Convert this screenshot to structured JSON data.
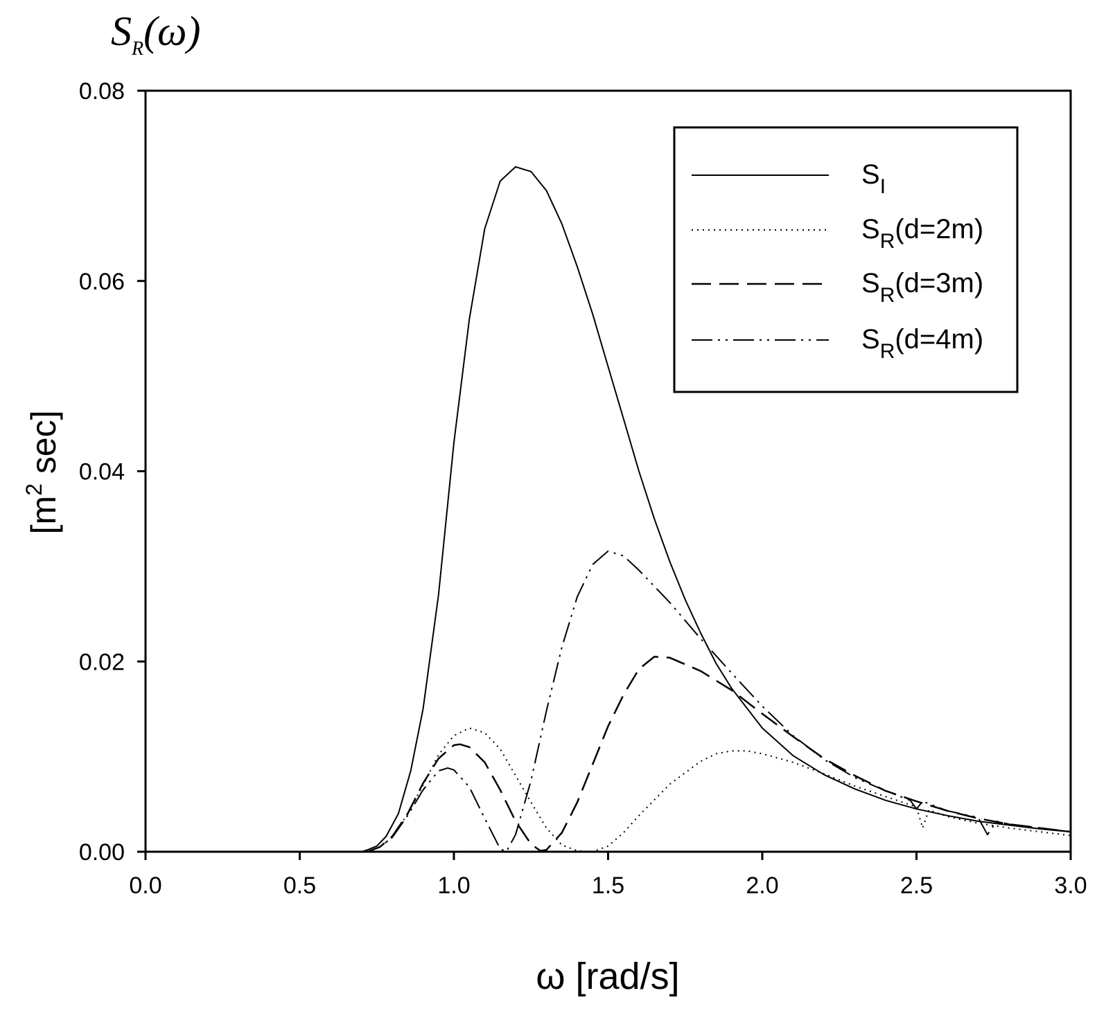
{
  "chart_data": {
    "type": "line",
    "title": "S",
    "title_subscript": "R",
    "title_suffix": "(ω)",
    "xlabel": "ω [rad/s]",
    "ylabel": "[m² sec]",
    "ylabel_parts": {
      "pre": "[m",
      "sup": "2",
      "post": " sec]"
    },
    "xlim": [
      0,
      3
    ],
    "ylim": [
      0,
      0.08
    ],
    "x_ticks": [
      "0.0",
      "0.5",
      "1.0",
      "1.5",
      "2.0",
      "2.5",
      "3.0"
    ],
    "y_ticks": [
      "0.00",
      "0.02",
      "0.04",
      "0.06",
      "0.08"
    ],
    "legend_position": "top-right",
    "series": [
      {
        "name": "SI",
        "label_main": "S",
        "label_sub": "I",
        "label_suffix": "",
        "style": "solid",
        "points": [
          [
            0.0,
            0
          ],
          [
            0.7,
            0
          ],
          [
            0.72,
            0.0002
          ],
          [
            0.75,
            0.0006
          ],
          [
            0.78,
            0.0016
          ],
          [
            0.82,
            0.004
          ],
          [
            0.86,
            0.0085
          ],
          [
            0.9,
            0.015
          ],
          [
            0.95,
            0.027
          ],
          [
            1.0,
            0.043
          ],
          [
            1.05,
            0.056
          ],
          [
            1.1,
            0.0655
          ],
          [
            1.15,
            0.0705
          ],
          [
            1.2,
            0.072
          ],
          [
            1.25,
            0.0715
          ],
          [
            1.3,
            0.0695
          ],
          [
            1.35,
            0.066
          ],
          [
            1.4,
            0.0615
          ],
          [
            1.45,
            0.0565
          ],
          [
            1.5,
            0.051
          ],
          [
            1.55,
            0.0455
          ],
          [
            1.6,
            0.04
          ],
          [
            1.65,
            0.035
          ],
          [
            1.7,
            0.0305
          ],
          [
            1.75,
            0.0265
          ],
          [
            1.8,
            0.023
          ],
          [
            1.85,
            0.0198
          ],
          [
            1.9,
            0.0172
          ],
          [
            2.0,
            0.013
          ],
          [
            2.1,
            0.0101
          ],
          [
            2.2,
            0.0081
          ],
          [
            2.3,
            0.0066
          ],
          [
            2.4,
            0.0054
          ],
          [
            2.5,
            0.0045
          ],
          [
            2.6,
            0.0038
          ],
          [
            2.7,
            0.0032
          ],
          [
            2.8,
            0.0028
          ],
          [
            2.9,
            0.0024
          ],
          [
            3.0,
            0.0021
          ]
        ]
      },
      {
        "name": "SR(d=2m)",
        "label_main": "S",
        "label_sub": "R",
        "label_suffix": "(d=2m)",
        "style": "dotted",
        "points": [
          [
            0.0,
            0
          ],
          [
            0.72,
            0
          ],
          [
            0.76,
            0.0005
          ],
          [
            0.8,
            0.0015
          ],
          [
            0.85,
            0.004
          ],
          [
            0.9,
            0.007
          ],
          [
            0.95,
            0.0102
          ],
          [
            1.0,
            0.0122
          ],
          [
            1.05,
            0.013
          ],
          [
            1.1,
            0.0125
          ],
          [
            1.15,
            0.0108
          ],
          [
            1.2,
            0.008
          ],
          [
            1.25,
            0.0052
          ],
          [
            1.3,
            0.0025
          ],
          [
            1.35,
            0.0007
          ],
          [
            1.4,
            0.0001
          ],
          [
            1.45,
            0
          ],
          [
            1.5,
            0.0006
          ],
          [
            1.55,
            0.002
          ],
          [
            1.6,
            0.0038
          ],
          [
            1.7,
            0.0071
          ],
          [
            1.8,
            0.0095
          ],
          [
            1.85,
            0.0103
          ],
          [
            1.9,
            0.0106
          ],
          [
            1.95,
            0.0106
          ],
          [
            2.0,
            0.0103
          ],
          [
            2.1,
            0.0094
          ],
          [
            2.2,
            0.0082
          ],
          [
            2.3,
            0.0069
          ],
          [
            2.4,
            0.0058
          ],
          [
            2.5,
            0.0047
          ],
          [
            2.52,
            0.0025
          ],
          [
            2.54,
            0.0044
          ],
          [
            2.6,
            0.0037
          ],
          [
            2.7,
            0.003
          ],
          [
            2.8,
            0.0025
          ],
          [
            2.9,
            0.0021
          ],
          [
            3.0,
            0.0017
          ]
        ]
      },
      {
        "name": "SR(d=3m)",
        "label_main": "S",
        "label_sub": "R",
        "label_suffix": "(d=3m)",
        "style": "dashed",
        "points": [
          [
            0.0,
            0
          ],
          [
            0.72,
            0
          ],
          [
            0.76,
            0.0005
          ],
          [
            0.8,
            0.0016
          ],
          [
            0.85,
            0.004
          ],
          [
            0.9,
            0.0072
          ],
          [
            0.95,
            0.0098
          ],
          [
            1.0,
            0.0112
          ],
          [
            1.02,
            0.0113
          ],
          [
            1.05,
            0.011
          ],
          [
            1.1,
            0.0094
          ],
          [
            1.15,
            0.0065
          ],
          [
            1.2,
            0.0032
          ],
          [
            1.25,
            0.0008
          ],
          [
            1.28,
            0.0001
          ],
          [
            1.3,
            0.0002
          ],
          [
            1.35,
            0.002
          ],
          [
            1.4,
            0.0052
          ],
          [
            1.45,
            0.0092
          ],
          [
            1.5,
            0.0132
          ],
          [
            1.55,
            0.0165
          ],
          [
            1.6,
            0.0192
          ],
          [
            1.65,
            0.0205
          ],
          [
            1.7,
            0.0204
          ],
          [
            1.8,
            0.019
          ],
          [
            1.9,
            0.017
          ],
          [
            2.0,
            0.0145
          ],
          [
            2.1,
            0.0121
          ],
          [
            2.2,
            0.0098
          ],
          [
            2.3,
            0.008
          ],
          [
            2.4,
            0.0064
          ],
          [
            2.5,
            0.0053
          ],
          [
            2.6,
            0.0043
          ],
          [
            2.7,
            0.0035
          ],
          [
            2.8,
            0.0029
          ],
          [
            2.9,
            0.0025
          ],
          [
            3.0,
            0.0021
          ]
        ]
      },
      {
        "name": "SR(d=4m)",
        "label_main": "S",
        "label_sub": "R",
        "label_suffix": "(d=4m)",
        "style": "dash-dot-dot",
        "points": [
          [
            0.0,
            0
          ],
          [
            0.72,
            0
          ],
          [
            0.76,
            0.0005
          ],
          [
            0.8,
            0.0015
          ],
          [
            0.85,
            0.0038
          ],
          [
            0.9,
            0.0065
          ],
          [
            0.95,
            0.0085
          ],
          [
            0.98,
            0.0088
          ],
          [
            1.0,
            0.0086
          ],
          [
            1.05,
            0.0068
          ],
          [
            1.1,
            0.0035
          ],
          [
            1.15,
            0.0003
          ],
          [
            1.17,
            0
          ],
          [
            1.2,
            0.0018
          ],
          [
            1.25,
            0.0075
          ],
          [
            1.3,
            0.0148
          ],
          [
            1.35,
            0.0215
          ],
          [
            1.4,
            0.0268
          ],
          [
            1.45,
            0.0302
          ],
          [
            1.5,
            0.0316
          ],
          [
            1.55,
            0.0311
          ],
          [
            1.6,
            0.0296
          ],
          [
            1.7,
            0.0262
          ],
          [
            1.8,
            0.0224
          ],
          [
            1.9,
            0.0188
          ],
          [
            2.0,
            0.0153
          ],
          [
            2.1,
            0.0122
          ],
          [
            2.2,
            0.0097
          ],
          [
            2.3,
            0.0078
          ],
          [
            2.4,
            0.0064
          ],
          [
            2.48,
            0.0054
          ],
          [
            2.5,
            0.0045
          ],
          [
            2.52,
            0.0053
          ],
          [
            2.6,
            0.0043
          ],
          [
            2.7,
            0.0036
          ],
          [
            2.73,
            0.0018
          ],
          [
            2.76,
            0.0032
          ],
          [
            2.8,
            0.0029
          ],
          [
            2.9,
            0.0025
          ],
          [
            3.0,
            0.0021
          ]
        ]
      }
    ]
  }
}
